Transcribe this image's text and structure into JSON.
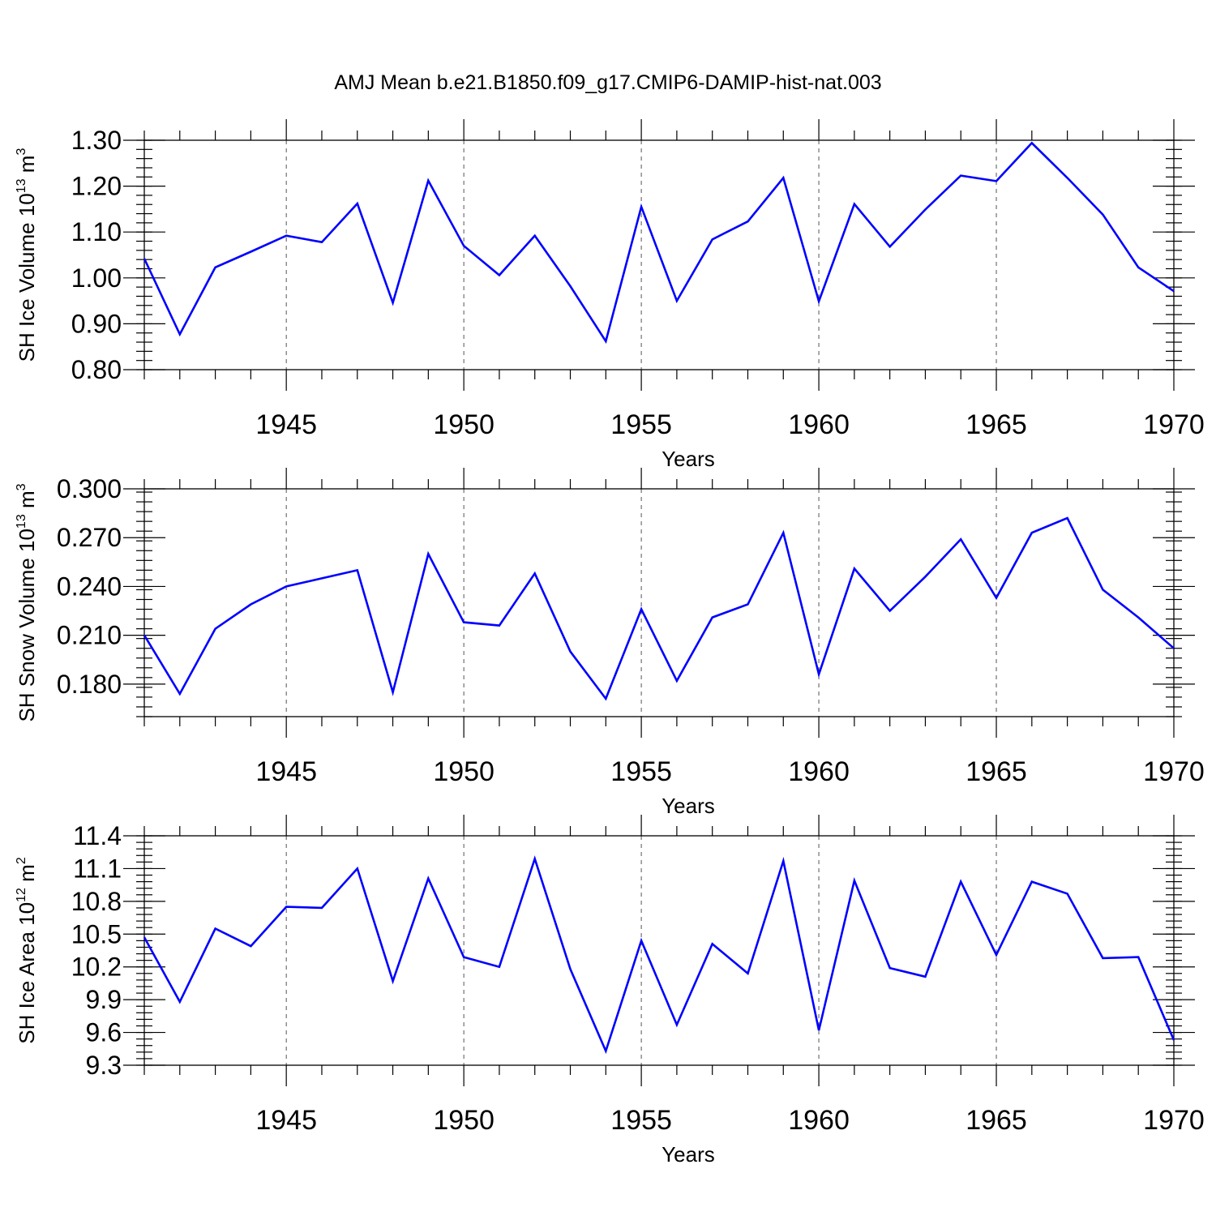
{
  "figure": {
    "title": "AMJ Mean b.e21.B1850.f09_g17.CMIP6-DAMIP-hist-nat.003"
  },
  "chart_data": [
    {
      "type": "line",
      "ylabel": {
        "main": "SH Ice Volume 10",
        "sup": "13",
        "unit": " m",
        "unit_sup": "3"
      },
      "xlabel": "Years",
      "xlim": [
        1941,
        1970
      ],
      "ylim": [
        0.8,
        1.3
      ],
      "xticks": [
        1945,
        1950,
        1955,
        1960,
        1965,
        1970
      ],
      "yticks": [
        0.8,
        0.9,
        1.0,
        1.1,
        1.2,
        1.3
      ],
      "ytick_labels": [
        "0.80",
        "0.90",
        "1.00",
        "1.10",
        "1.20",
        "1.30"
      ],
      "grid": "vertical dashed at major x ticks",
      "series_color": "#0000ff",
      "x": [
        1941,
        1942,
        1943,
        1944,
        1945,
        1946,
        1947,
        1948,
        1949,
        1950,
        1951,
        1952,
        1953,
        1954,
        1955,
        1956,
        1957,
        1958,
        1959,
        1960,
        1961,
        1962,
        1963,
        1964,
        1965,
        1966,
        1967,
        1968,
        1969,
        1970
      ],
      "values": [
        1.042,
        0.877,
        1.023,
        1.057,
        1.092,
        1.078,
        1.162,
        0.946,
        1.212,
        1.07,
        1.006,
        1.092,
        0.982,
        0.862,
        1.155,
        0.95,
        1.084,
        1.123,
        1.218,
        0.949,
        1.161,
        1.068,
        1.149,
        1.223,
        1.211,
        1.294,
        1.218,
        1.138,
        1.023,
        0.971
      ]
    },
    {
      "type": "line",
      "ylabel": {
        "main": "SH Snow Volume 10",
        "sup": "13",
        "unit": " m",
        "unit_sup": "3"
      },
      "xlabel": "Years",
      "xlim": [
        1941,
        1970
      ],
      "ylim": [
        0.16,
        0.3
      ],
      "xticks": [
        1945,
        1950,
        1955,
        1960,
        1965,
        1970
      ],
      "yticks": [
        0.18,
        0.21,
        0.24,
        0.27,
        0.3
      ],
      "ytick_labels": [
        "0.180",
        "0.210",
        "0.240",
        "0.270",
        "0.300"
      ],
      "grid": "vertical dashed at major x ticks",
      "series_color": "#0000ff",
      "x": [
        1941,
        1942,
        1943,
        1944,
        1945,
        1946,
        1947,
        1948,
        1949,
        1950,
        1951,
        1952,
        1953,
        1954,
        1955,
        1956,
        1957,
        1958,
        1959,
        1960,
        1961,
        1962,
        1963,
        1964,
        1965,
        1966,
        1967,
        1968,
        1969,
        1970
      ],
      "values": [
        0.21,
        0.174,
        0.214,
        0.229,
        0.24,
        0.245,
        0.25,
        0.175,
        0.26,
        0.218,
        0.216,
        0.248,
        0.2,
        0.171,
        0.226,
        0.182,
        0.221,
        0.229,
        0.273,
        0.186,
        0.251,
        0.225,
        0.246,
        0.269,
        0.233,
        0.273,
        0.282,
        0.238,
        0.221,
        0.202
      ]
    },
    {
      "type": "line",
      "ylabel": {
        "main": "SH Ice Area 10",
        "sup": "12",
        "unit": " m",
        "unit_sup": "2"
      },
      "xlabel": "Years",
      "xlim": [
        1941,
        1970
      ],
      "ylim": [
        9.3,
        11.4
      ],
      "xticks": [
        1945,
        1950,
        1955,
        1960,
        1965,
        1970
      ],
      "yticks": [
        9.3,
        9.6,
        9.9,
        10.2,
        10.5,
        10.8,
        11.1,
        11.4
      ],
      "ytick_labels": [
        "9.3",
        "9.6",
        "9.9",
        "10.2",
        "10.5",
        "10.8",
        "11.1",
        "11.4"
      ],
      "grid": "vertical dashed at major x ticks",
      "series_color": "#0000ff",
      "x": [
        1941,
        1942,
        1943,
        1944,
        1945,
        1946,
        1947,
        1948,
        1949,
        1950,
        1951,
        1952,
        1953,
        1954,
        1955,
        1956,
        1957,
        1958,
        1959,
        1960,
        1961,
        1962,
        1963,
        1964,
        1965,
        1966,
        1967,
        1968,
        1969,
        1970
      ],
      "values": [
        10.47,
        9.88,
        10.55,
        10.39,
        10.75,
        10.74,
        11.1,
        10.07,
        11.01,
        10.29,
        10.2,
        11.19,
        10.18,
        9.43,
        10.44,
        9.67,
        10.41,
        10.14,
        11.17,
        9.62,
        10.99,
        10.19,
        10.11,
        10.98,
        10.31,
        10.98,
        10.87,
        10.28,
        10.29,
        9.53
      ]
    }
  ]
}
